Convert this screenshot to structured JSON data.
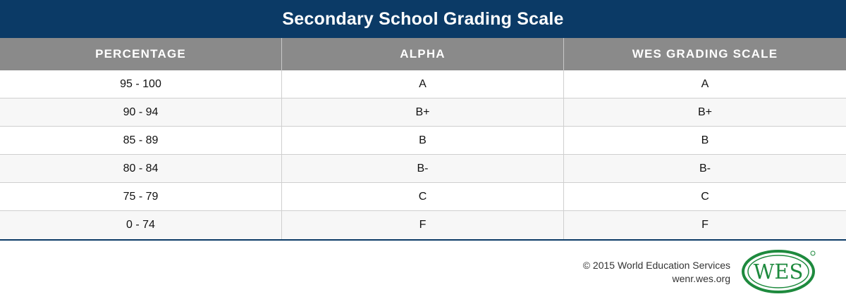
{
  "title": "Secondary School Grading Scale",
  "columns": [
    "PERCENTAGE",
    "ALPHA",
    "WES GRADING SCALE"
  ],
  "rows": [
    [
      "95 - 100",
      "A",
      "A"
    ],
    [
      "90 - 94",
      "B+",
      "B+"
    ],
    [
      "85 - 89",
      "B",
      "B"
    ],
    [
      "80 - 84",
      "B-",
      "B-"
    ],
    [
      "75 - 79",
      "C",
      "C"
    ],
    [
      "0 - 74",
      "F",
      "F"
    ]
  ],
  "footer": {
    "copyright": "© 2015 World Education Services",
    "url": "wenr.wes.org"
  },
  "logo": {
    "text": "WES",
    "color": "#1e8a3e"
  },
  "colors": {
    "title_bg": "#0b3a66",
    "header_bg": "#8a8a8a"
  }
}
